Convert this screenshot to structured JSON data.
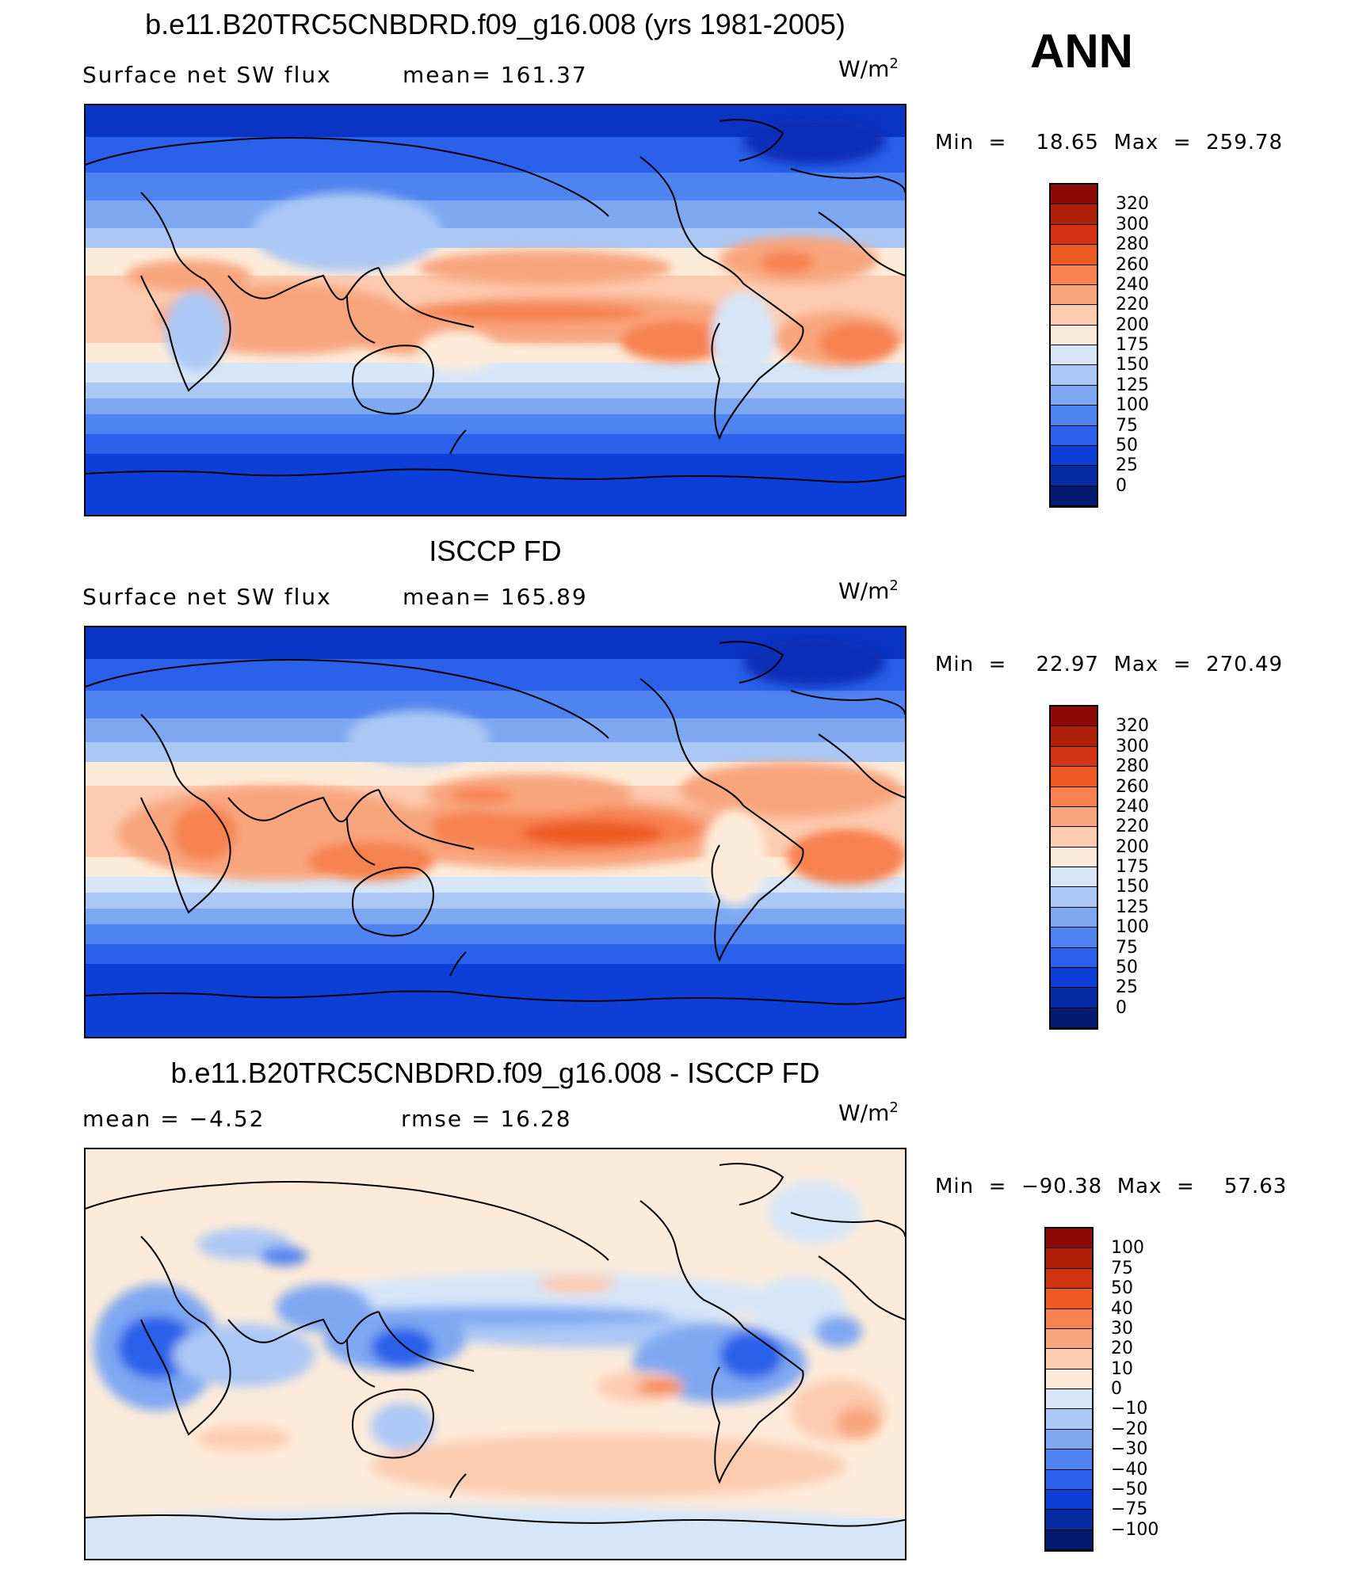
{
  "header": {
    "season": "ANN"
  },
  "panels": [
    {
      "title": "b.e11.B20TRC5CNBDRD.f09_g16.008 (yrs 1981-2005)",
      "left_text": "Surface  net  SW  flux",
      "mid_text": "mean=  161.37",
      "unit_base": "W/m",
      "unit_exp": "2",
      "minmax": "Min  =    18.65  Max  =  259.78",
      "colorbar_labels": [
        "320",
        "300",
        "280",
        "260",
        "240",
        "220",
        "200",
        "175",
        "150",
        "125",
        "100",
        "75",
        "50",
        "25",
        "0"
      ],
      "colorbar_colors": [
        "#8b0a05",
        "#b01f0a",
        "#d23412",
        "#ee5a24",
        "#f7814f",
        "#f8a57e",
        "#fccbb0",
        "#fdebd9",
        "#d6e6f8",
        "#aac7f5",
        "#7ea7f2",
        "#4f83ef",
        "#2a60ea",
        "#0d3fd8",
        "#062ba2",
        "#021a6f"
      ]
    },
    {
      "title": "ISCCP FD",
      "left_text": "Surface  net  SW  flux",
      "mid_text": "mean=  165.89",
      "unit_base": "W/m",
      "unit_exp": "2",
      "minmax": "Min  =    22.97  Max  =  270.49",
      "colorbar_labels": [
        "320",
        "300",
        "280",
        "260",
        "240",
        "220",
        "200",
        "175",
        "150",
        "125",
        "100",
        "75",
        "50",
        "25",
        "0"
      ],
      "colorbar_colors": [
        "#8b0a05",
        "#b01f0a",
        "#d23412",
        "#ee5a24",
        "#f7814f",
        "#f8a57e",
        "#fccbb0",
        "#fdebd9",
        "#d6e6f8",
        "#aac7f5",
        "#7ea7f2",
        "#4f83ef",
        "#2a60ea",
        "#0d3fd8",
        "#062ba2",
        "#021a6f"
      ]
    },
    {
      "title": "b.e11.B20TRC5CNBDRD.f09_g16.008 - ISCCP FD",
      "left_text": "mean  =    −4.52",
      "mid_text": "rmse  =    16.28",
      "unit_base": "W/m",
      "unit_exp": "2",
      "minmax": "Min  =  −90.38  Max  =    57.63",
      "colorbar_labels": [
        "100",
        "75",
        "50",
        "40",
        "30",
        "20",
        "10",
        "0",
        "−10",
        "−20",
        "−30",
        "−40",
        "−50",
        "−75",
        "−100"
      ],
      "colorbar_colors": [
        "#8b0a05",
        "#b01f0a",
        "#d23412",
        "#ee5a24",
        "#f7814f",
        "#f8a57e",
        "#fccbb0",
        "#fdebd9",
        "#d6e6f8",
        "#aac7f5",
        "#7ea7f2",
        "#4f83ef",
        "#2a60ea",
        "#0d3fd8",
        "#062ba2",
        "#021a6f"
      ]
    }
  ]
}
